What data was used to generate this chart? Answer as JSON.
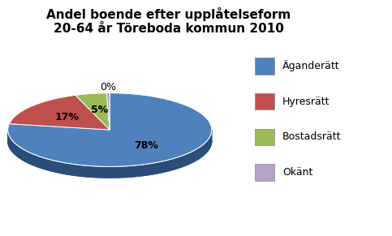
{
  "title": "Andel boende efter upplåtelseform\n20-64 år Töreboda kommun 2010",
  "slices": [
    78,
    17,
    5,
    0.5
  ],
  "display_pcts": [
    "78%",
    "17%",
    "5%",
    "0%"
  ],
  "colors": [
    "#4f81bd",
    "#c0504d",
    "#9bbb59",
    "#b8a0c8"
  ],
  "dark_colors": [
    "#2a4e78",
    "#2a4e78",
    "#2a4e78",
    "#2a4e78"
  ],
  "legend_labels": [
    "Äganderätt",
    "Hyresrätt",
    "Bostadsrätt",
    "Okänt"
  ],
  "startangle": 90,
  "title_fontsize": 11,
  "legend_fontsize": 9,
  "pct_fontsize": 9,
  "depth": 0.18,
  "yscale": 0.6
}
